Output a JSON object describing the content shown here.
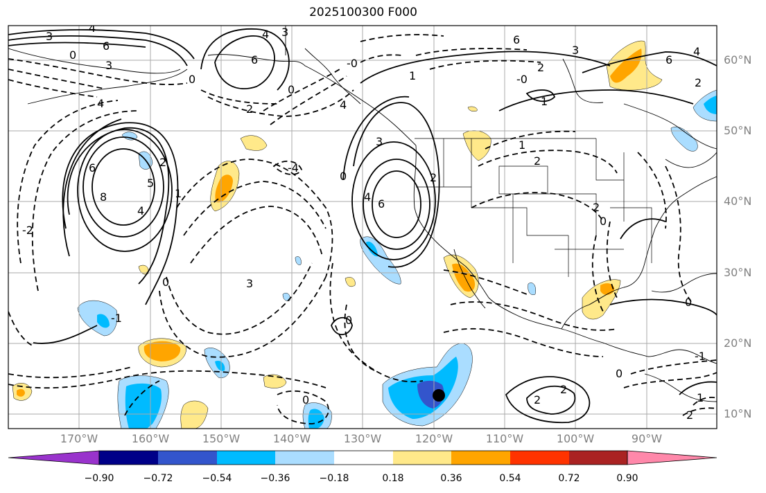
{
  "title": "2025100300 F000",
  "lat_labels": [
    "60°N",
    "50°N",
    "40°N",
    "30°N",
    "20°N",
    "10°N"
  ],
  "lon_labels": [
    "170°W",
    "160°W",
    "150°W",
    "140°W",
    "130°W",
    "120°W",
    "110°W",
    "100°W",
    "90°W"
  ],
  "colorbar": {
    "tick_labels": [
      "−0.90",
      "−0.72",
      "−0.54",
      "−0.36",
      "−0.18",
      "0.18",
      "0.36",
      "0.54",
      "0.72",
      "0.90"
    ],
    "colors": [
      "#9933cc",
      "#000088",
      "#3355cc",
      "#00bbff",
      "#aaddff",
      "#ffffff",
      "#ffe98a",
      "#ffa500",
      "#ff3300",
      "#aa2222",
      "#ff88aa"
    ]
  },
  "contour_labels": [
    "3",
    "4",
    "0",
    "3",
    "6",
    "4",
    "3",
    "6",
    "0",
    "0",
    "6",
    "3",
    "2",
    "-0",
    "1",
    "6",
    "-0",
    "4",
    "1",
    "2",
    "2",
    "4",
    "4",
    "-4",
    "3",
    "6",
    "0",
    "8",
    "4",
    "5",
    "2",
    "2",
    "6",
    "4",
    "-2",
    "1",
    "1",
    "2",
    "0",
    "2",
    "0",
    "0",
    "-1",
    "0",
    "-1",
    "0",
    "0",
    "2",
    "2",
    "2",
    "3",
    "1"
  ],
  "fill_colors": {
    "yellow": "#ffe98a",
    "orange": "#ffa500",
    "light_blue": "#aaddff",
    "blue": "#00bbff",
    "mid_blue": "#3355cc"
  },
  "marker": {
    "label": "observation-point",
    "color": "#000000"
  }
}
